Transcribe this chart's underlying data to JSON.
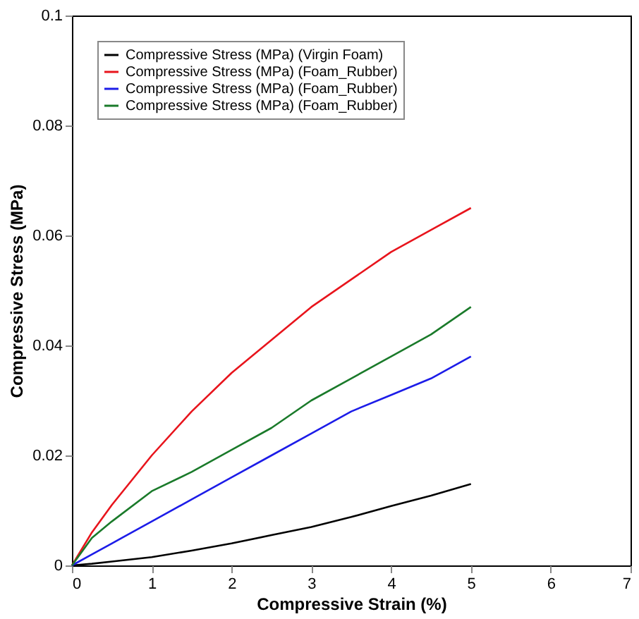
{
  "chart_data": {
    "type": "line",
    "xlabel": "Compressive Strain (%)",
    "ylabel": "Compressive Stress (MPa)",
    "xlim": [
      0,
      7
    ],
    "xticks": [
      0,
      1,
      2,
      3,
      4,
      5,
      6,
      7
    ],
    "ylim": [
      0,
      0.1
    ],
    "yticks": [
      0,
      0.02,
      0.04,
      0.06,
      0.08,
      0.1
    ],
    "grid": false,
    "legend": "top left",
    "marker": "none",
    "line_style": "solid",
    "x": [
      0,
      0.25,
      0.5,
      1,
      1.5,
      2,
      2.5,
      3,
      3.5,
      4,
      4.5,
      5
    ],
    "series": [
      {
        "name": "Compressive Stress (MPa) (Virgin Foam)",
        "color": "#000000",
        "values": [
          0,
          0.0003,
          0.0007,
          0.0015,
          0.0027,
          0.004,
          0.0055,
          0.007,
          0.0088,
          0.0108,
          0.0127,
          0.0148
        ]
      },
      {
        "name": "Compressive Stress (MPa) (Foam_Rubber)",
        "color": "#e8141c",
        "values": [
          0,
          0.006,
          0.011,
          0.02,
          0.028,
          0.035,
          0.041,
          0.047,
          0.052,
          0.057,
          0.061,
          0.065
        ]
      },
      {
        "name": "Compressive Stress (MPa) (Foam_Rubber)",
        "color": "#1c1ce8",
        "values": [
          0,
          0.002,
          0.004,
          0.008,
          0.012,
          0.016,
          0.02,
          0.024,
          0.028,
          0.031,
          0.034,
          0.038
        ]
      },
      {
        "name": "Compressive Stress (MPa) (Foam_Rubber)",
        "color": "#1a7a2a",
        "values": [
          0,
          0.005,
          0.008,
          0.0135,
          0.017,
          0.021,
          0.025,
          0.03,
          0.034,
          0.038,
          0.042,
          0.047
        ]
      }
    ]
  }
}
